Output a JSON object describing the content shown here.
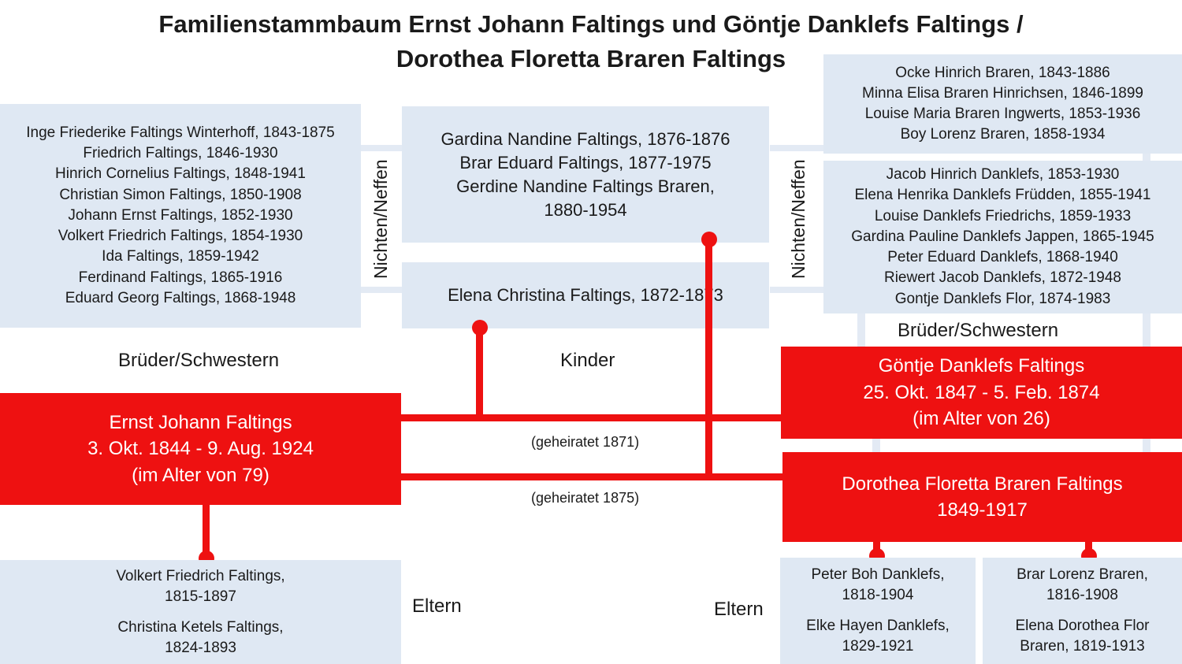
{
  "title": {
    "line1": "Familienstammbaum Ernst Johann Faltings und Göntje Danklefs Faltings /",
    "line2": "Dorothea Floretta Braren Faltings"
  },
  "siblings_ernst": [
    "Inge Friederike Faltings Winterhoff, 1843-1875",
    "Friedrich Faltings, 1846-1930",
    "Hinrich Cornelius Faltings, 1848-1941",
    "Christian Simon Faltings, 1850-1908",
    "Johann Ernst Faltings, 1852-1930",
    "Volkert Friedrich Faltings, 1854-1930",
    "Ida Faltings, 1859-1942",
    "Ferdinand Faltings, 1865-1916",
    "Eduard Georg Faltings, 1868-1948"
  ],
  "children_second": [
    "Gardina Nandine Faltings, 1876-1876",
    "Brar Eduard Faltings, 1877-1975",
    "Gerdine Nandine Faltings Braren,",
    "1880-1954"
  ],
  "children_first": [
    "Elena Christina Faltings, 1872-1873"
  ],
  "siblings_dorothea": [
    "Ocke Hinrich Braren, 1843-1886",
    "Minna Elisa Braren Hinrichsen, 1846-1899",
    "Louise Maria Braren Ingwerts, 1853-1936",
    "Boy Lorenz Braren, 1858-1934"
  ],
  "siblings_goentje": [
    "Jacob Hinrich Danklefs, 1853-1930",
    "Elena Henrika Danklefs Früdden, 1855-1941",
    "Louise Danklefs Friedrichs, 1859-1933",
    "Gardina Pauline Danklefs Jappen, 1865-1945",
    "Peter Eduard Danklefs, 1868-1940",
    "Riewert Jacob Danklefs, 1872-1948",
    "Gontje Danklefs Flor, 1874-1983"
  ],
  "labels": {
    "nichten_neffen": "Nichten/Neffen",
    "brueder_schwestern": "Brüder/Schwestern",
    "kinder": "Kinder",
    "eltern": "Eltern",
    "married_1871": "(geheiratet 1871)",
    "married_1875": "(geheiratet 1875)"
  },
  "ernst": {
    "name": "Ernst Johann Faltings",
    "dates": "3. Okt. 1844 - 9. Aug. 1924",
    "age": "(im Alter von 79)"
  },
  "goentje": {
    "name": "Göntje Danklefs Faltings",
    "dates": "25. Okt. 1847 - 5. Feb. 1874",
    "age": "(im Alter von 26)"
  },
  "dorothea": {
    "name": "Dorothea Floretta Braren Faltings",
    "dates": "1849-1917"
  },
  "parents_ernst": {
    "father": [
      "Volkert Friedrich Faltings,",
      "1815-1897"
    ],
    "mother": [
      "Christina Ketels Faltings,",
      "1824-1893"
    ]
  },
  "parents_goentje": {
    "father": [
      "Peter Boh Danklefs,",
      "1818-1904"
    ],
    "mother": [
      "Elke Hayen Danklefs,",
      "1829-1921"
    ]
  },
  "parents_dorothea": {
    "father": [
      "Brar Lorenz Braren,",
      "1816-1908"
    ],
    "mother": [
      "Elena Dorothea Flor",
      "Braren, 1819-1913"
    ]
  },
  "colors": {
    "red": "#ee1111",
    "light_blue": "#dfe8f3"
  }
}
